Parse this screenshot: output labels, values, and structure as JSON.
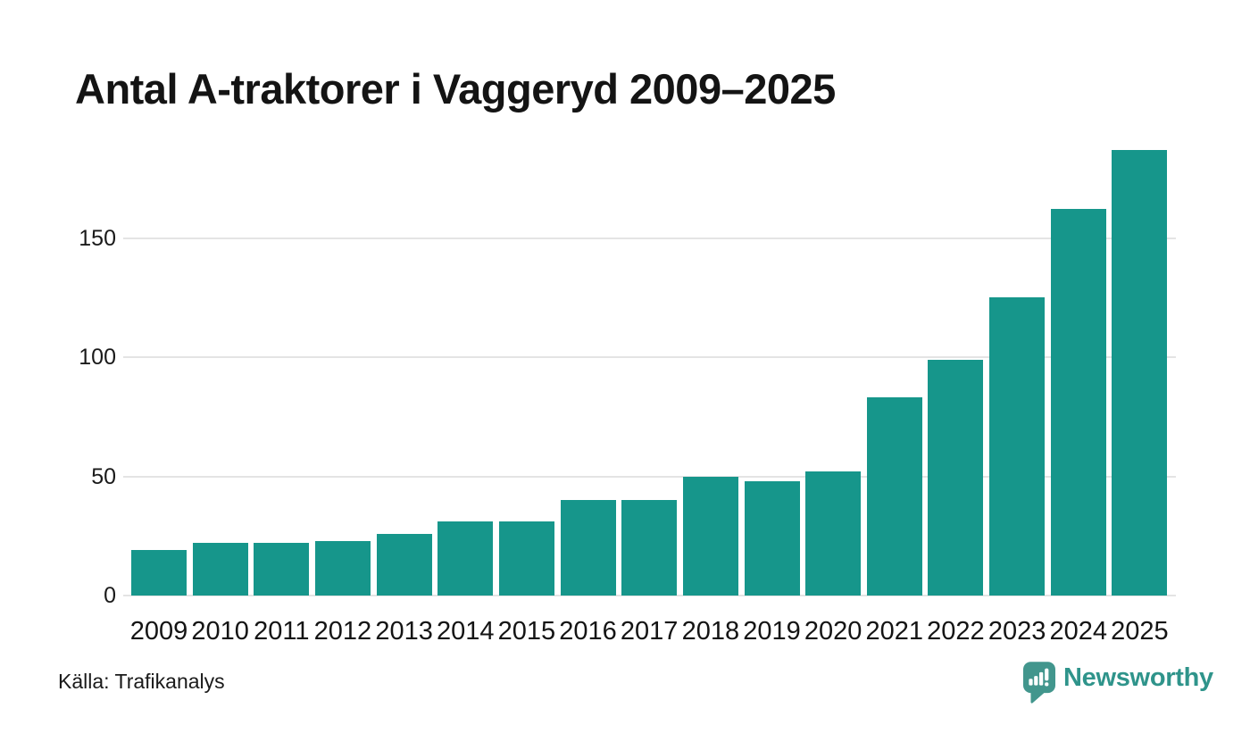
{
  "chart_data": {
    "type": "bar",
    "title": "Antal A-traktorer i Vaggeryd 2009–2025",
    "categories": [
      "2009",
      "2010",
      "2011",
      "2012",
      "2013",
      "2014",
      "2015",
      "2016",
      "2017",
      "2018",
      "2019",
      "2020",
      "2021",
      "2022",
      "2023",
      "2024",
      "2025"
    ],
    "values": [
      19,
      22,
      22,
      23,
      26,
      31,
      31,
      40,
      40,
      50,
      48,
      52,
      83,
      99,
      125,
      162,
      187
    ],
    "xlabel": "",
    "ylabel": "",
    "ylim": [
      0,
      190
    ],
    "yticks": [
      0,
      50,
      100,
      150
    ],
    "grid": "horizontal-only",
    "legend": "none",
    "bar_color": "#16968b",
    "source": "Källa: Trafikanalys"
  },
  "branding": {
    "logo_text": "Newsworthy",
    "logo_color": "#2f948b",
    "icon_color": "#42968d",
    "icon_name": "newsworthy-speech-bubble-bar-chart-icon"
  }
}
